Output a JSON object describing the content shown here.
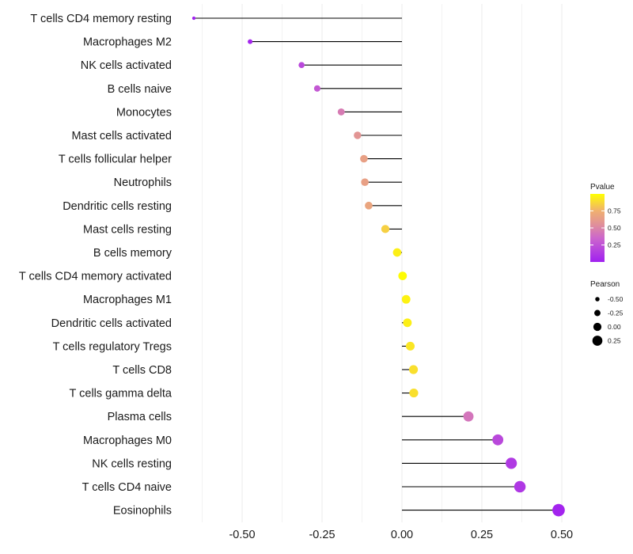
{
  "chart_data": {
    "type": "scatter",
    "subtype": "lollipop",
    "title": "",
    "xlabel": "",
    "ylabel": "",
    "xlim": [
      -0.68,
      0.52
    ],
    "x_ticks": [
      -0.5,
      -0.25,
      0.0,
      0.25,
      0.5
    ],
    "x_tick_labels": [
      "-0.50",
      "-0.25",
      "0.00",
      "0.25",
      "0.50"
    ],
    "grid": true,
    "categories": [
      "T cells CD4 memory resting",
      "Macrophages M2",
      "NK cells activated",
      "B cells naive",
      "Monocytes",
      "Mast cells activated",
      "T cells follicular helper",
      "Neutrophils",
      "Dendritic cells resting",
      "Mast cells resting",
      "B cells memory",
      "T cells CD4 memory activated",
      "Macrophages M1",
      "Dendritic cells activated",
      "T cells regulatory  Tregs ",
      "T cells CD8",
      "T cells gamma delta",
      "Plasma cells",
      "Macrophages M0",
      "NK cells resting",
      "T cells CD4 naive",
      "Eosinophils"
    ],
    "series": [
      {
        "name": "Pearson",
        "values": [
          -0.651,
          -0.475,
          -0.314,
          -0.265,
          -0.19,
          -0.139,
          -0.119,
          -0.116,
          -0.104,
          -0.052,
          -0.015,
          0.002,
          0.013,
          0.017,
          0.026,
          0.036,
          0.037,
          0.208,
          0.3,
          0.342,
          0.369,
          0.49
        ]
      },
      {
        "name": "Pvalue",
        "values": [
          0.001,
          0.03,
          0.2,
          0.28,
          0.45,
          0.58,
          0.65,
          0.65,
          0.68,
          0.85,
          0.95,
          0.99,
          0.96,
          0.95,
          0.92,
          0.9,
          0.9,
          0.42,
          0.2,
          0.13,
          0.12,
          0.02
        ]
      }
    ],
    "legend": {
      "placement": "right",
      "color": {
        "title": "Pvalue",
        "ticks": [
          0.25,
          0.5,
          0.75
        ],
        "tick_labels": [
          "0.25",
          "0.50",
          "0.75"
        ],
        "range": [
          0.0,
          1.0
        ],
        "colors": [
          "#a020f0",
          "#d080c0",
          "#f0b070",
          "#ffff00"
        ]
      },
      "size": {
        "title": "Pearson",
        "values": [
          -0.5,
          -0.25,
          0.0,
          0.25
        ],
        "labels": [
          "-0.50",
          "-0.25",
          "0.00",
          "0.25"
        ]
      }
    }
  }
}
